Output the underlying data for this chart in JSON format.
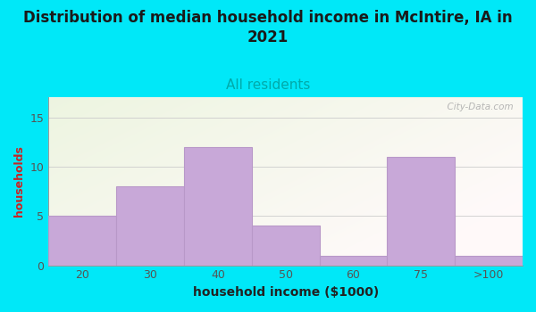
{
  "title": "Distribution of median household income in McIntire, IA in\n2021",
  "subtitle": "All residents",
  "xlabel": "household income ($1000)",
  "ylabel": "households",
  "categories": [
    "20",
    "30",
    "40",
    "50",
    "60",
    "75",
    ">100"
  ],
  "values": [
    5,
    8,
    12,
    4,
    1,
    11,
    1
  ],
  "bar_color": "#C8A8D8",
  "bar_edge_color": "#B898C8",
  "title_fontsize": 12,
  "subtitle_fontsize": 11,
  "xlabel_fontsize": 10,
  "ylabel_fontsize": 9,
  "tick_fontsize": 9,
  "ylim": [
    0,
    17
  ],
  "yticks": [
    0,
    5,
    10,
    15
  ],
  "outer_bg_color": "#00E8F8",
  "plot_bg_green": "#D8EDD0",
  "plot_bg_white": "#F8FAF8",
  "title_color": "#1A1A1A",
  "subtitle_color": "#00AAAA",
  "ylabel_color": "#CC2222",
  "xlabel_color": "#222222",
  "tick_color": "#555555",
  "watermark_text": "  City-Data.com",
  "watermark_color": "#AAAAAA",
  "grid_color": "#CCCCCC"
}
